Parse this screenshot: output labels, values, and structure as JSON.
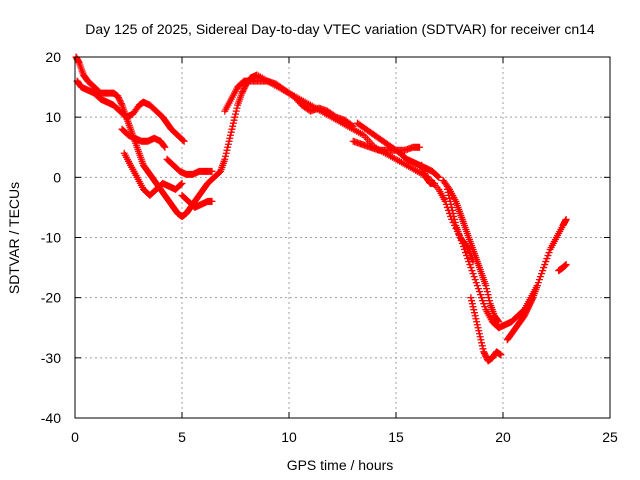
{
  "colors": {
    "series": "#ff0000",
    "grid": "#a0a0a0",
    "axis": "#000000"
  },
  "chart_data": {
    "type": "scatter",
    "title": "Day 125 of 2025, Sidereal Day-to-day VTEC variation (SDTVAR) for receiver cn14",
    "xlabel": "GPS time / hours",
    "ylabel": "SDTVAR / TECUs",
    "xlim": [
      0,
      25
    ],
    "ylim": [
      -40,
      20
    ],
    "xticks": [
      0,
      5,
      10,
      15,
      20,
      25
    ],
    "xtick_labels": [
      "0",
      "5",
      "10",
      "15",
      "20",
      "25"
    ],
    "yticks": [
      -40,
      -30,
      -20,
      -10,
      0,
      10,
      20
    ],
    "ytick_labels": [
      "-40",
      "-30",
      "-20",
      "-10",
      "0",
      "10",
      "20"
    ],
    "grid": true,
    "marker": "plus",
    "series": [
      {
        "name": "track-a",
        "points": [
          [
            0.05,
            20
          ],
          [
            0.2,
            19
          ],
          [
            0.4,
            17
          ],
          [
            0.6,
            16
          ],
          [
            0.9,
            15
          ],
          [
            1.2,
            14
          ],
          [
            1.5,
            14
          ],
          [
            1.8,
            14
          ],
          [
            2.0,
            13.5
          ],
          [
            2.2,
            12
          ],
          [
            2.4,
            10
          ],
          [
            2.6,
            8
          ],
          [
            2.8,
            6
          ],
          [
            3.0,
            4
          ],
          [
            3.2,
            2
          ],
          [
            3.4,
            1
          ],
          [
            3.6,
            0
          ],
          [
            3.8,
            -1
          ],
          [
            4.0,
            -2
          ],
          [
            4.2,
            -3
          ],
          [
            4.4,
            -4
          ],
          [
            4.6,
            -5
          ],
          [
            4.8,
            -6
          ],
          [
            5.0,
            -6.5
          ],
          [
            5.2,
            -6
          ],
          [
            5.4,
            -5
          ],
          [
            5.6,
            -4
          ],
          [
            5.8,
            -3
          ],
          [
            6.0,
            -2
          ],
          [
            6.2,
            -1
          ],
          [
            6.5,
            0
          ],
          [
            6.8,
            1
          ],
          [
            7.0,
            3
          ],
          [
            7.2,
            6
          ],
          [
            7.4,
            9
          ],
          [
            7.6,
            12
          ],
          [
            7.8,
            14
          ],
          [
            8.0,
            15.5
          ],
          [
            8.2,
            16.5
          ],
          [
            8.5,
            17
          ],
          [
            9.0,
            16
          ],
          [
            9.5,
            15
          ],
          [
            10.0,
            14
          ],
          [
            10.5,
            13
          ],
          [
            11.0,
            12
          ],
          [
            11.5,
            11
          ],
          [
            12.0,
            10
          ],
          [
            12.5,
            9
          ],
          [
            13.0,
            8
          ],
          [
            13.5,
            7
          ],
          [
            14.0,
            5
          ],
          [
            14.5,
            4
          ],
          [
            15.0,
            3
          ],
          [
            15.5,
            2
          ],
          [
            16.0,
            1
          ],
          [
            16.5,
            0
          ],
          [
            17.0,
            -2
          ],
          [
            17.3,
            -4
          ],
          [
            17.6,
            -7
          ],
          [
            18.0,
            -10
          ],
          [
            18.3,
            -13
          ],
          [
            18.6,
            -16
          ],
          [
            18.9,
            -19
          ],
          [
            19.2,
            -22
          ],
          [
            19.5,
            -24
          ],
          [
            19.8,
            -25
          ],
          [
            20.1,
            -24.5
          ],
          [
            20.4,
            -24
          ],
          [
            20.7,
            -23
          ],
          [
            21.0,
            -22
          ],
          [
            21.3,
            -20
          ],
          [
            21.6,
            -18
          ],
          [
            21.9,
            -15
          ],
          [
            22.2,
            -12
          ],
          [
            22.5,
            -10
          ],
          [
            22.8,
            -8
          ],
          [
            22.95,
            -7
          ]
        ]
      },
      {
        "name": "track-b",
        "points": [
          [
            0.1,
            16
          ],
          [
            0.3,
            15
          ],
          [
            0.6,
            14.5
          ],
          [
            0.9,
            14
          ],
          [
            1.2,
            13
          ],
          [
            1.5,
            12.5
          ],
          [
            1.8,
            12
          ],
          [
            2.1,
            11
          ],
          [
            2.4,
            10
          ],
          [
            2.7,
            10.5
          ],
          [
            3.0,
            12
          ],
          [
            3.2,
            12.5
          ],
          [
            3.5,
            12
          ],
          [
            3.8,
            11
          ],
          [
            4.1,
            10
          ],
          [
            4.3,
            9
          ],
          [
            4.5,
            8
          ],
          [
            4.8,
            7
          ],
          [
            5.1,
            6
          ]
        ]
      },
      {
        "name": "track-c",
        "points": [
          [
            2.2,
            8
          ],
          [
            2.5,
            7
          ],
          [
            2.8,
            6.5
          ],
          [
            3.1,
            6
          ],
          [
            3.4,
            6
          ],
          [
            3.7,
            6.5
          ],
          [
            4.0,
            6
          ],
          [
            4.2,
            5
          ]
        ]
      },
      {
        "name": "track-d",
        "points": [
          [
            2.3,
            4
          ],
          [
            2.6,
            2
          ],
          [
            2.9,
            0
          ],
          [
            3.2,
            -2
          ],
          [
            3.5,
            -3
          ],
          [
            3.8,
            -2
          ],
          [
            4.1,
            -1
          ],
          [
            4.4,
            -1.5
          ],
          [
            4.7,
            -2
          ],
          [
            5.0,
            -1
          ]
        ]
      },
      {
        "name": "track-e",
        "points": [
          [
            4.3,
            3
          ],
          [
            4.6,
            2
          ],
          [
            4.9,
            1
          ],
          [
            5.2,
            0.5
          ],
          [
            5.5,
            0.5
          ],
          [
            5.8,
            1
          ],
          [
            6.1,
            1
          ],
          [
            6.4,
            1
          ]
        ]
      },
      {
        "name": "track-f",
        "points": [
          [
            5.0,
            -3
          ],
          [
            5.3,
            -4
          ],
          [
            5.6,
            -5
          ],
          [
            5.9,
            -4.5
          ],
          [
            6.2,
            -4
          ],
          [
            6.4,
            -4
          ]
        ]
      },
      {
        "name": "track-g",
        "points": [
          [
            7.0,
            11
          ],
          [
            7.3,
            13
          ],
          [
            7.6,
            15
          ],
          [
            7.9,
            16
          ],
          [
            8.2,
            16
          ],
          [
            8.6,
            16
          ],
          [
            9.0,
            16
          ],
          [
            9.4,
            15.5
          ],
          [
            9.8,
            14.5
          ],
          [
            10.2,
            13.5
          ],
          [
            10.6,
            12
          ],
          [
            11.0,
            11
          ],
          [
            11.4,
            11.5
          ],
          [
            11.8,
            11
          ],
          [
            12.2,
            10
          ],
          [
            12.6,
            9.5
          ],
          [
            13.0,
            8.5
          ]
        ]
      },
      {
        "name": "track-h",
        "points": [
          [
            13.0,
            6
          ],
          [
            13.4,
            5.5
          ],
          [
            13.8,
            5
          ],
          [
            14.2,
            4.5
          ],
          [
            14.6,
            4.5
          ],
          [
            15.0,
            4.5
          ],
          [
            15.4,
            4.5
          ],
          [
            15.8,
            5
          ],
          [
            16.1,
            5
          ]
        ]
      },
      {
        "name": "track-i",
        "points": [
          [
            13.2,
            9
          ],
          [
            13.6,
            8
          ],
          [
            14.0,
            7
          ],
          [
            14.4,
            6
          ],
          [
            14.8,
            5
          ],
          [
            15.2,
            4
          ],
          [
            15.5,
            3
          ],
          [
            15.8,
            2.5
          ],
          [
            16.1,
            2
          ],
          [
            16.4,
            1.5
          ],
          [
            16.7,
            1
          ],
          [
            17.0,
            0
          ]
        ]
      },
      {
        "name": "track-j",
        "points": [
          [
            16.2,
            2
          ],
          [
            16.4,
            0
          ],
          [
            16.6,
            -1
          ],
          [
            16.8,
            -1
          ]
        ]
      },
      {
        "name": "track-k",
        "points": [
          [
            17.2,
            -0.5
          ],
          [
            17.5,
            -2
          ],
          [
            17.8,
            -4
          ],
          [
            18.0,
            -6
          ],
          [
            18.2,
            -8
          ],
          [
            18.4,
            -10
          ],
          [
            18.6,
            -12
          ],
          [
            18.8,
            -14
          ],
          [
            19.0,
            -16
          ],
          [
            19.2,
            -18
          ],
          [
            19.4,
            -21
          ],
          [
            19.6,
            -23
          ],
          [
            19.8,
            -24
          ]
        ]
      },
      {
        "name": "track-l",
        "points": [
          [
            17.4,
            -2
          ],
          [
            17.6,
            -5
          ],
          [
            17.8,
            -8
          ],
          [
            18.0,
            -10
          ],
          [
            18.2,
            -11
          ],
          [
            18.4,
            -12
          ],
          [
            18.6,
            -14
          ]
        ]
      },
      {
        "name": "track-m",
        "points": [
          [
            18.5,
            -20
          ],
          [
            18.7,
            -23
          ],
          [
            18.9,
            -26
          ],
          [
            19.1,
            -29
          ],
          [
            19.3,
            -30.5
          ],
          [
            19.5,
            -30
          ],
          [
            19.7,
            -29
          ],
          [
            19.9,
            -29.5
          ]
        ]
      },
      {
        "name": "track-n",
        "points": [
          [
            20.2,
            -27
          ],
          [
            20.4,
            -26
          ],
          [
            20.6,
            -25
          ],
          [
            20.8,
            -24
          ],
          [
            21.0,
            -23
          ],
          [
            21.2,
            -21.5
          ],
          [
            21.4,
            -20
          ],
          [
            21.6,
            -18
          ]
        ]
      },
      {
        "name": "track-o",
        "points": [
          [
            22.6,
            -15.5
          ],
          [
            22.8,
            -15
          ],
          [
            22.95,
            -14.5
          ]
        ]
      }
    ]
  }
}
